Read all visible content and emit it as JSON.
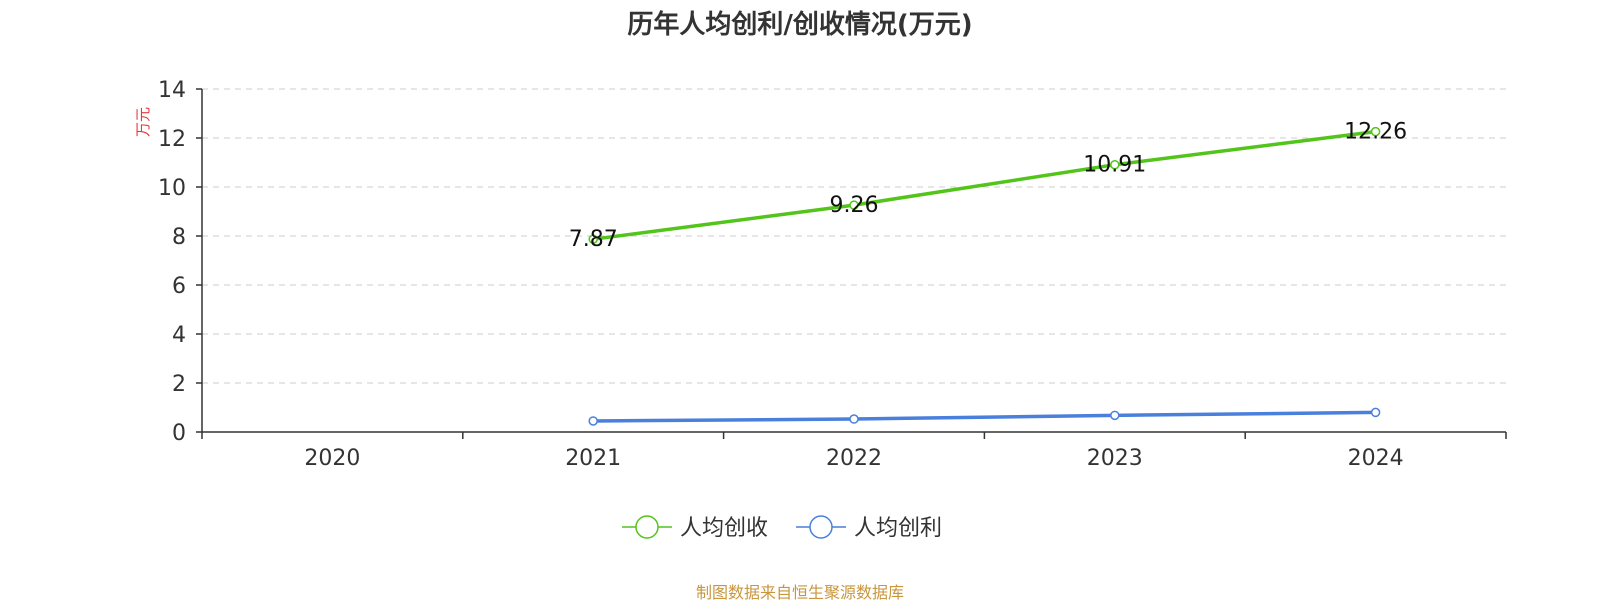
{
  "title": "历年人均创利/创收情况(万元)",
  "footer": "制图数据来自恒生聚源数据库",
  "colors": {
    "revenue": "#52c41a",
    "profit": "#4a7fdc",
    "unit": "#e8383d",
    "footer": "#c8963c"
  },
  "chart_data": {
    "type": "line",
    "title": "历年人均创利/创收情况(万元)",
    "ylabel": "万元",
    "categories": [
      "2020",
      "2021",
      "2022",
      "2023",
      "2024"
    ],
    "ylim": [
      0,
      14
    ],
    "yticks": [
      0,
      2,
      4,
      6,
      8,
      10,
      12,
      14
    ],
    "grid": true,
    "legend_position": "bottom-center",
    "series": [
      {
        "name": "人均创收",
        "values": [
          null,
          7.87,
          9.26,
          10.91,
          12.26
        ],
        "labels": [
          "",
          "7.87",
          "9.26",
          "10.91",
          "12.26"
        ]
      },
      {
        "name": "人均创利",
        "values": [
          null,
          0.45,
          0.53,
          0.68,
          0.8
        ],
        "labels": [
          "",
          "",
          "",
          "",
          ""
        ]
      }
    ]
  }
}
